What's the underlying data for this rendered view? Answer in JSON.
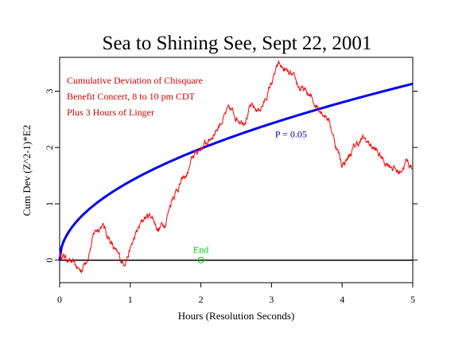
{
  "chart_data": {
    "type": "line",
    "title": "Sea to Shining See, Sept 22, 2001",
    "xlabel": "Hours (Resolution Seconds)",
    "ylabel": "Cum Dev (Z^2-1)*E2",
    "xlim": [
      0,
      5
    ],
    "ylim": [
      -0.4,
      3.6
    ],
    "x_ticks": [
      0,
      1,
      2,
      3,
      4,
      5
    ],
    "y_ticks": [
      0,
      1,
      2,
      3
    ],
    "grid": false,
    "annotations": {
      "lines": [
        "Cumulative Deviation of Chisquare",
        "Benefit Concert, 8 to 10 pm CDT",
        "Plus 3 Hours of Linger"
      ],
      "color": "#cc0000"
    },
    "series": [
      {
        "name": "",
        "color": "#ff0000",
        "x": [
          0,
          0.1,
          0.2,
          0.3,
          0.4,
          0.5,
          0.6,
          0.7,
          0.8,
          0.9,
          1.0,
          1.1,
          1.2,
          1.3,
          1.4,
          1.5,
          1.6,
          1.7,
          1.8,
          1.9,
          2.0,
          2.1,
          2.2,
          2.3,
          2.4,
          2.5,
          2.6,
          2.7,
          2.8,
          2.9,
          3.0,
          3.05,
          3.1,
          3.2,
          3.3,
          3.4,
          3.5,
          3.6,
          3.7,
          3.8,
          3.9,
          4.0,
          4.1,
          4.2,
          4.3,
          4.4,
          4.5,
          4.6,
          4.7,
          4.8,
          4.9,
          5.0
        ],
        "y": [
          0.1,
          0.05,
          -0.1,
          -0.2,
          0.1,
          0.5,
          0.65,
          0.4,
          0.1,
          -0.05,
          0.2,
          0.5,
          0.75,
          0.8,
          0.55,
          0.7,
          1.15,
          1.35,
          1.5,
          1.85,
          2.0,
          2.1,
          2.3,
          2.5,
          2.65,
          2.55,
          2.5,
          2.7,
          2.65,
          2.8,
          3.15,
          3.3,
          3.45,
          3.35,
          3.2,
          3.05,
          2.95,
          2.8,
          2.7,
          2.55,
          2.1,
          1.7,
          1.85,
          2.05,
          2.15,
          2.05,
          1.9,
          1.75,
          1.7,
          1.55,
          1.75,
          1.65
        ]
      },
      {
        "name": "",
        "color": "#0000ee",
        "type": "envelope",
        "formula": "1.4 * sqrt(x)",
        "label": "P = 0.05",
        "label_x": 3.05,
        "label_y": 2.18
      }
    ],
    "baseline": 0,
    "marker": {
      "label": "End",
      "x": 2.0,
      "y": 0,
      "color": "#00cc00"
    }
  }
}
